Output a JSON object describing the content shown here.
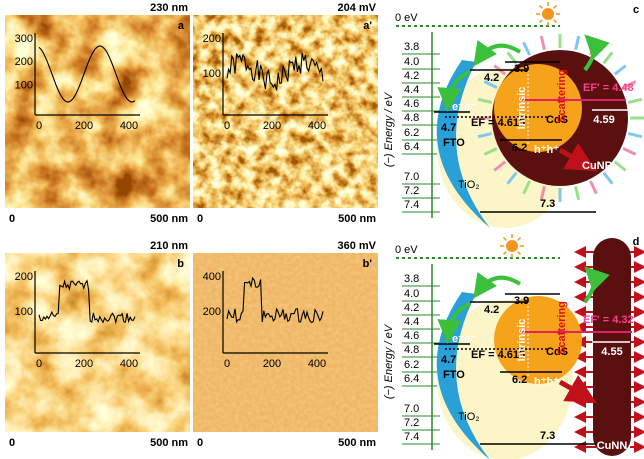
{
  "afm_panels": [
    {
      "label": "a",
      "scale": "230 nm",
      "x_start": "0",
      "x_end": "500 nm",
      "inset_yticks": [
        "300",
        "200",
        "100"
      ],
      "inset_xticks": [
        "0",
        "200",
        "400"
      ]
    },
    {
      "label": "a'",
      "scale": "204 mV",
      "x_start": "0",
      "x_end": "500 nm",
      "inset_yticks": [
        "200",
        "100"
      ],
      "inset_xticks": [
        "0",
        "200",
        "400"
      ]
    },
    {
      "label": "b",
      "scale": "210 nm",
      "x_start": "0",
      "x_end": "500 nm",
      "inset_yticks": [
        "200",
        "100"
      ],
      "inset_xticks": [
        "0",
        "200",
        "400"
      ]
    },
    {
      "label": "b'",
      "scale": "360 mV",
      "x_start": "0",
      "x_end": "500 nm",
      "inset_yticks": [
        "400",
        "200"
      ],
      "inset_xticks": [
        "0",
        "200",
        "400"
      ]
    }
  ],
  "diagrams": [
    {
      "label": "c",
      "zero": "0 eV",
      "axis_label": "(−) Energy / eV",
      "levels": [
        "3.8",
        "4.0",
        "4.2",
        "4.4",
        "4.6",
        "4.8",
        "6.2",
        "6.4",
        "7.0",
        "7.2",
        "7.4"
      ],
      "fto_level": "4.7",
      "fto": "FTO",
      "tio2": "TiO₂",
      "tio2_cb": "4.2",
      "cds_cb": "3.9",
      "ef": "EF = 4.615",
      "cds": "CdS",
      "intrinsic": "Intrinsic",
      "scattering": "Scattering",
      "ef_metal": "EF' = 4.48",
      "metal_level": "4.59",
      "cds_vb": "6.2",
      "holes": "h⁺h⁺",
      "tio2_vb": "7.3",
      "metal": "CuNP",
      "electrons": "e⁻e⁻"
    },
    {
      "label": "d",
      "zero": "0 eV",
      "axis_label": "(−) Energy / eV",
      "levels": [
        "3.8",
        "4.0",
        "4.2",
        "4.4",
        "4.6",
        "4.8",
        "6.2",
        "6.4",
        "7.0",
        "7.2",
        "7.4"
      ],
      "fto_level": "4.7",
      "fto": "FTO",
      "tio2": "TiO₂",
      "tio2_cb": "4.2",
      "cds_cb": "3.9",
      "ef": "EF = 4.615",
      "cds": "CdS",
      "intrinsic": "Intrinsic",
      "scattering": "Scattering",
      "ef_metal": "EF' = 4.32",
      "metal_level": "4.55",
      "cds_vb": "6.2",
      "holes": "h⁺h⁺",
      "tio2_vb": "7.3",
      "metal": "CuNN",
      "electrons": "e⁻e⁻"
    }
  ]
}
